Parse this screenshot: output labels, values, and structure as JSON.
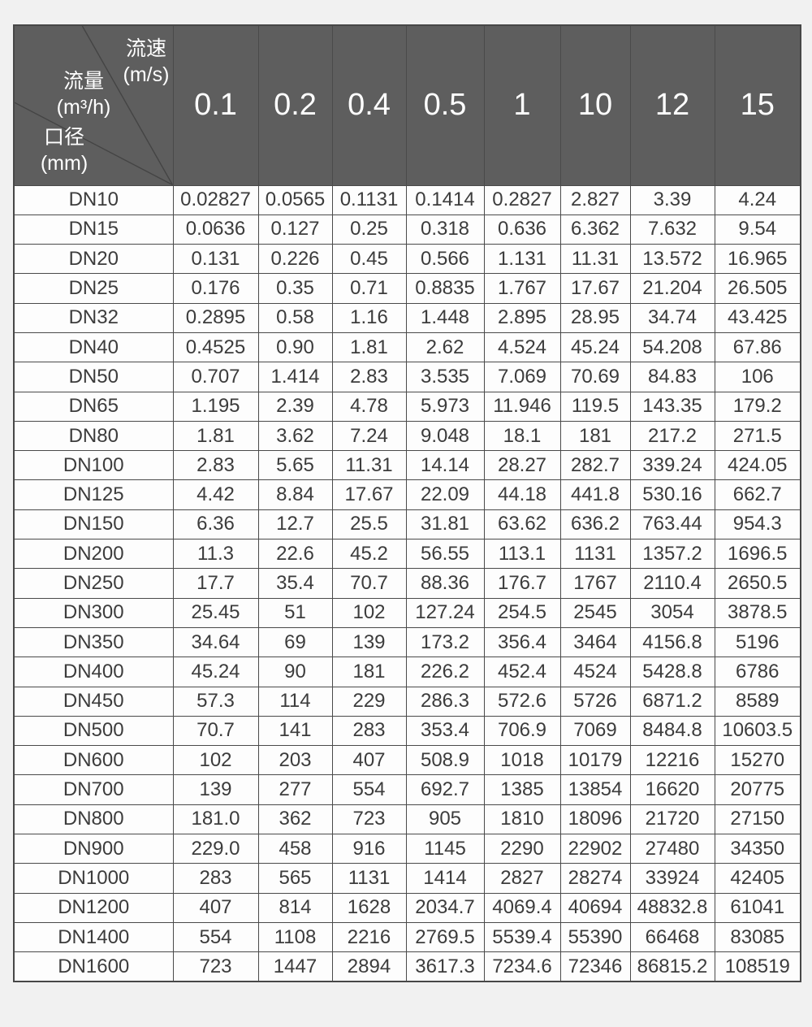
{
  "style": {
    "page_bg": "#f1f1f1",
    "header_bg": "#5e5e5e",
    "header_text": "#ffffff",
    "body_bg": "#fdfdfd",
    "body_text": "#3c3c3c",
    "border_color": "#4a4a4a"
  },
  "chart_data": {
    "type": "table",
    "corner": {
      "velocity_label": "流速",
      "velocity_unit": "(m/s)",
      "flow_label": "流量",
      "flow_unit": "(m³/h)",
      "diameter_label": "口径",
      "diameter_unit": "(mm)"
    },
    "velocity_columns_m_per_s": [
      "0.1",
      "0.2",
      "0.4",
      "0.5",
      "1",
      "10",
      "12",
      "15"
    ],
    "rows": [
      {
        "dn": "DN10",
        "values": [
          "0.02827",
          "0.0565",
          "0.1131",
          "0.1414",
          "0.2827",
          "2.827",
          "3.39",
          "4.24"
        ]
      },
      {
        "dn": "DN15",
        "values": [
          "0.0636",
          "0.127",
          "0.25",
          "0.318",
          "0.636",
          "6.362",
          "7.632",
          "9.54"
        ]
      },
      {
        "dn": "DN20",
        "values": [
          "0.131",
          "0.226",
          "0.45",
          "0.566",
          "1.131",
          "11.31",
          "13.572",
          "16.965"
        ]
      },
      {
        "dn": "DN25",
        "values": [
          "0.176",
          "0.35",
          "0.71",
          "0.8835",
          "1.767",
          "17.67",
          "21.204",
          "26.505"
        ]
      },
      {
        "dn": "DN32",
        "values": [
          "0.2895",
          "0.58",
          "1.16",
          "1.448",
          "2.895",
          "28.95",
          "34.74",
          "43.425"
        ]
      },
      {
        "dn": "DN40",
        "values": [
          "0.4525",
          "0.90",
          "1.81",
          "2.62",
          "4.524",
          "45.24",
          "54.208",
          "67.86"
        ]
      },
      {
        "dn": "DN50",
        "values": [
          "0.707",
          "1.414",
          "2.83",
          "3.535",
          "7.069",
          "70.69",
          "84.83",
          "106"
        ]
      },
      {
        "dn": "DN65",
        "values": [
          "1.195",
          "2.39",
          "4.78",
          "5.973",
          "11.946",
          "119.5",
          "143.35",
          "179.2"
        ]
      },
      {
        "dn": "DN80",
        "values": [
          "1.81",
          "3.62",
          "7.24",
          "9.048",
          "18.1",
          "181",
          "217.2",
          "271.5"
        ]
      },
      {
        "dn": "DN100",
        "values": [
          "2.83",
          "5.65",
          "11.31",
          "14.14",
          "28.27",
          "282.7",
          "339.24",
          "424.05"
        ]
      },
      {
        "dn": "DN125",
        "values": [
          "4.42",
          "8.84",
          "17.67",
          "22.09",
          "44.18",
          "441.8",
          "530.16",
          "662.7"
        ]
      },
      {
        "dn": "DN150",
        "values": [
          "6.36",
          "12.7",
          "25.5",
          "31.81",
          "63.62",
          "636.2",
          "763.44",
          "954.3"
        ]
      },
      {
        "dn": "DN200",
        "values": [
          "11.3",
          "22.6",
          "45.2",
          "56.55",
          "113.1",
          "1131",
          "1357.2",
          "1696.5"
        ]
      },
      {
        "dn": "DN250",
        "values": [
          "17.7",
          "35.4",
          "70.7",
          "88.36",
          "176.7",
          "1767",
          "2110.4",
          "2650.5"
        ]
      },
      {
        "dn": "DN300",
        "values": [
          "25.45",
          "51",
          "102",
          "127.24",
          "254.5",
          "2545",
          "3054",
          "3878.5"
        ]
      },
      {
        "dn": "DN350",
        "values": [
          "34.64",
          "69",
          "139",
          "173.2",
          "356.4",
          "3464",
          "4156.8",
          "5196"
        ]
      },
      {
        "dn": "DN400",
        "values": [
          "45.24",
          "90",
          "181",
          "226.2",
          "452.4",
          "4524",
          "5428.8",
          "6786"
        ]
      },
      {
        "dn": "DN450",
        "values": [
          "57.3",
          "114",
          "229",
          "286.3",
          "572.6",
          "5726",
          "6871.2",
          "8589"
        ]
      },
      {
        "dn": "DN500",
        "values": [
          "70.7",
          "141",
          "283",
          "353.4",
          "706.9",
          "7069",
          "8484.8",
          "10603.5"
        ]
      },
      {
        "dn": "DN600",
        "values": [
          "102",
          "203",
          "407",
          "508.9",
          "1018",
          "10179",
          "12216",
          "15270"
        ]
      },
      {
        "dn": "DN700",
        "values": [
          "139",
          "277",
          "554",
          "692.7",
          "1385",
          "13854",
          "16620",
          "20775"
        ]
      },
      {
        "dn": "DN800",
        "values": [
          "181.0",
          "362",
          "723",
          "905",
          "1810",
          "18096",
          "21720",
          "27150"
        ]
      },
      {
        "dn": "DN900",
        "values": [
          "229.0",
          "458",
          "916",
          "1145",
          "2290",
          "22902",
          "27480",
          "34350"
        ]
      },
      {
        "dn": "DN1000",
        "values": [
          "283",
          "565",
          "1131",
          "1414",
          "2827",
          "28274",
          "33924",
          "42405"
        ]
      },
      {
        "dn": "DN1200",
        "values": [
          "407",
          "814",
          "1628",
          "2034.7",
          "4069.4",
          "40694",
          "48832.8",
          "61041"
        ]
      },
      {
        "dn": "DN1400",
        "values": [
          "554",
          "1108",
          "2216",
          "2769.5",
          "5539.4",
          "55390",
          "66468",
          "83085"
        ]
      },
      {
        "dn": "DN1600",
        "values": [
          "723",
          "1447",
          "2894",
          "3617.3",
          "7234.6",
          "72346",
          "86815.2",
          "108519"
        ]
      }
    ]
  }
}
